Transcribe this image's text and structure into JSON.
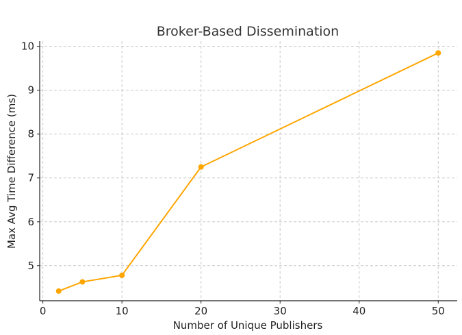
{
  "chart_data": {
    "type": "line",
    "title": "Broker-Based Dissemination",
    "xlabel": "Number of Unique Publishers",
    "ylabel": "Max Avg Time Difference (ms)",
    "x": [
      2,
      5,
      10,
      20,
      50
    ],
    "series": [
      {
        "values": [
          4.42,
          4.63,
          4.78,
          7.25,
          9.85
        ]
      }
    ],
    "xlim": [
      -0.4,
      52.4
    ],
    "ylim": [
      4.2,
      10.12
    ],
    "xticks": [
      0,
      10,
      20,
      30,
      40,
      50
    ],
    "yticks": [
      5,
      6,
      7,
      8,
      9,
      10
    ],
    "grid": true,
    "color": "#FFA500"
  }
}
